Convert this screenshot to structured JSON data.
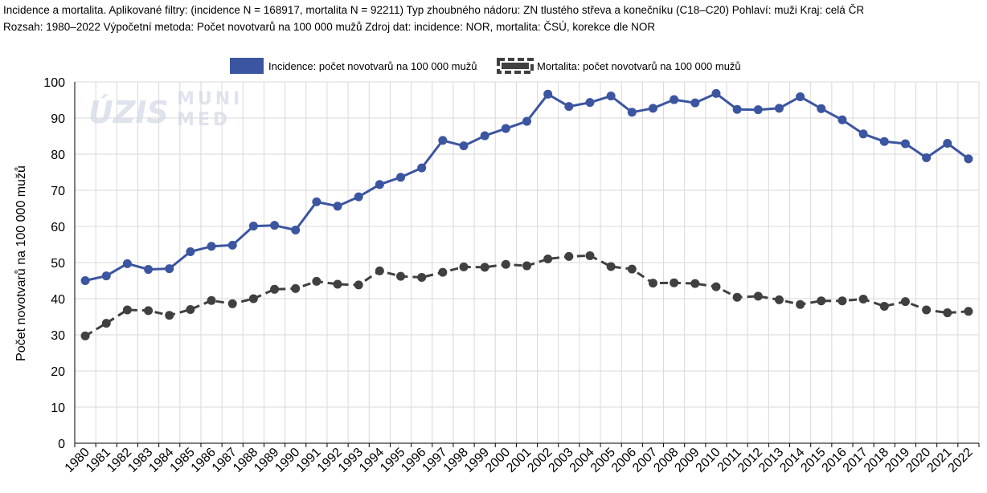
{
  "header": {
    "line1": "Incidence a mortalita. Aplikované filtry: (incidence N = 168917, mortalita N = 92211) Typ zhoubného nádoru: ZN tlustého střeva a konečníku (C18–C20) Pohlaví: muži Kraj: celá ČR",
    "line2": "Rozsah: 1980–2022 Výpočetní metoda: Počet novotvarů na 100 000 mužů Zdroj dat: incidence: NOR, mortalita: ČSÚ, korekce dle NOR"
  },
  "watermark": {
    "logo1": "ÚZIS",
    "logo2_line1": "MUNI",
    "logo2_line2": "MED"
  },
  "colors": {
    "incidence": "#3b55a0",
    "mortality": "#404040",
    "grid": "#d9d9d9"
  },
  "chart_data": {
    "type": "line",
    "title": "",
    "xlabel": "",
    "ylabel": "Počet novotvarů na 100 000 mužů",
    "ylim": [
      0,
      100
    ],
    "yticks": [
      0,
      10,
      20,
      30,
      40,
      50,
      60,
      70,
      80,
      90,
      100
    ],
    "grid": true,
    "legend_position": "top-center",
    "x": [
      "1980",
      "1981",
      "1982",
      "1983",
      "1984",
      "1985",
      "1986",
      "1987",
      "1988",
      "1989",
      "1990",
      "1991",
      "1992",
      "1993",
      "1994",
      "1995",
      "1996",
      "1997",
      "1998",
      "1999",
      "2000",
      "2001",
      "2002",
      "2003",
      "2004",
      "2005",
      "2006",
      "2007",
      "2008",
      "2009",
      "2010",
      "2011",
      "2012",
      "2013",
      "2014",
      "2015",
      "2016",
      "2017",
      "2018",
      "2019",
      "2020",
      "2021",
      "2022"
    ],
    "series": [
      {
        "name": "Incidence: počet novotvarů na 100 000 mužů",
        "style": "solid",
        "values": [
          45.0,
          46.3,
          49.7,
          48.1,
          48.3,
          53.0,
          54.5,
          54.8,
          60.1,
          60.3,
          59.0,
          66.8,
          65.6,
          68.2,
          71.6,
          73.6,
          76.2,
          83.8,
          82.3,
          85.1,
          87.1,
          89.1,
          96.6,
          93.2,
          94.3,
          96.1,
          91.6,
          92.7,
          95.1,
          94.2,
          96.8,
          92.4,
          92.3,
          92.7,
          95.9,
          92.6,
          89.5,
          85.6,
          83.5,
          82.9,
          79.0,
          83.0,
          78.7
        ]
      },
      {
        "name": "Mortalita: počet novotvarů na 100 000 mužů",
        "style": "dashed",
        "values": [
          29.7,
          33.2,
          36.9,
          36.7,
          35.4,
          37.0,
          39.5,
          38.6,
          40.0,
          42.6,
          42.8,
          44.8,
          44.0,
          43.8,
          47.7,
          46.2,
          45.9,
          47.3,
          48.8,
          48.7,
          49.5,
          49.1,
          51.0,
          51.7,
          51.9,
          48.9,
          48.2,
          44.3,
          44.4,
          44.2,
          43.3,
          40.4,
          40.7,
          39.7,
          38.4,
          39.4,
          39.4,
          39.9,
          37.9,
          39.2,
          36.9,
          36.1,
          36.5
        ]
      }
    ]
  }
}
